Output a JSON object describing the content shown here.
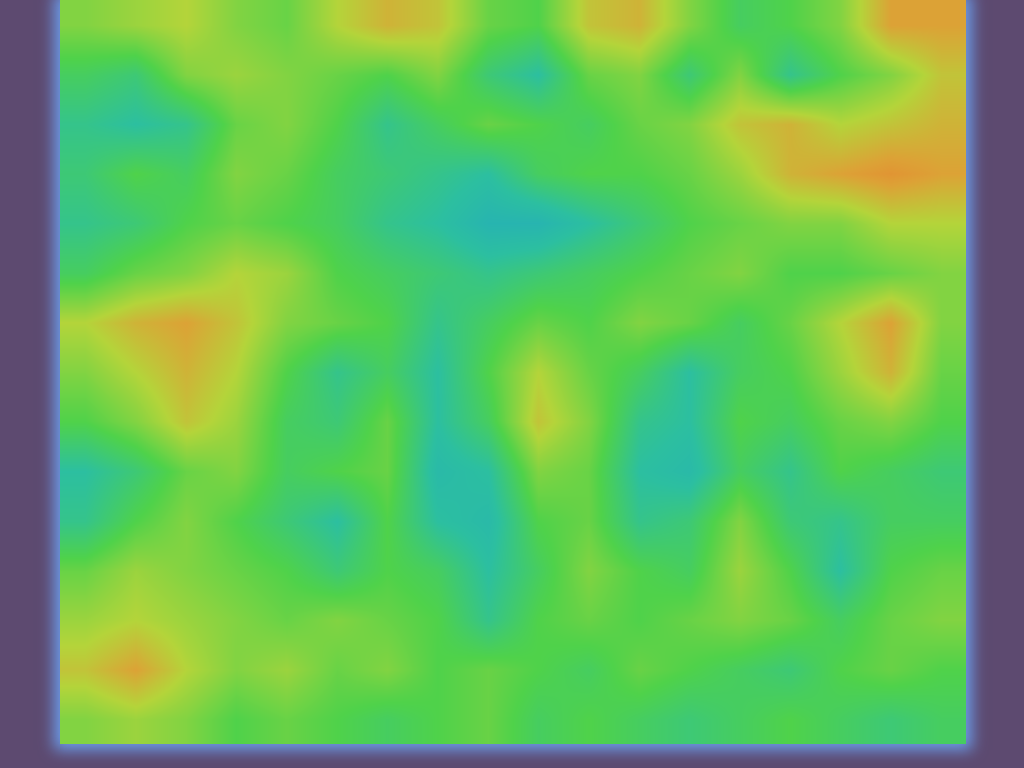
{
  "chart_data": {
    "type": "heatmap",
    "z": [
      [
        0.6,
        0.65,
        0.7,
        0.6,
        0.55,
        0.7,
        0.8,
        0.75,
        0.55,
        0.5,
        0.75,
        0.8,
        0.6,
        0.45,
        0.5,
        0.6,
        0.85,
        0.85
      ],
      [
        0.45,
        0.4,
        0.6,
        0.65,
        0.6,
        0.55,
        0.5,
        0.6,
        0.4,
        0.3,
        0.55,
        0.6,
        0.4,
        0.6,
        0.35,
        0.5,
        0.6,
        0.75
      ],
      [
        0.35,
        0.3,
        0.35,
        0.55,
        0.6,
        0.5,
        0.35,
        0.45,
        0.55,
        0.5,
        0.45,
        0.55,
        0.6,
        0.75,
        0.8,
        0.7,
        0.75,
        0.8
      ],
      [
        0.4,
        0.5,
        0.45,
        0.6,
        0.55,
        0.45,
        0.4,
        0.35,
        0.3,
        0.45,
        0.5,
        0.5,
        0.55,
        0.65,
        0.8,
        0.85,
        0.9,
        0.85
      ],
      [
        0.35,
        0.4,
        0.5,
        0.55,
        0.5,
        0.45,
        0.35,
        0.3,
        0.2,
        0.2,
        0.3,
        0.4,
        0.5,
        0.55,
        0.6,
        0.6,
        0.7,
        0.7
      ],
      [
        0.45,
        0.55,
        0.6,
        0.7,
        0.65,
        0.5,
        0.45,
        0.4,
        0.35,
        0.4,
        0.45,
        0.5,
        0.55,
        0.6,
        0.5,
        0.5,
        0.55,
        0.6
      ],
      [
        0.7,
        0.8,
        0.85,
        0.75,
        0.6,
        0.55,
        0.5,
        0.35,
        0.45,
        0.55,
        0.5,
        0.6,
        0.55,
        0.45,
        0.55,
        0.7,
        0.85,
        0.6
      ],
      [
        0.6,
        0.7,
        0.8,
        0.7,
        0.5,
        0.35,
        0.45,
        0.3,
        0.5,
        0.7,
        0.55,
        0.45,
        0.3,
        0.45,
        0.5,
        0.65,
        0.8,
        0.55
      ],
      [
        0.5,
        0.6,
        0.75,
        0.65,
        0.45,
        0.4,
        0.55,
        0.3,
        0.45,
        0.75,
        0.6,
        0.35,
        0.3,
        0.5,
        0.45,
        0.55,
        0.6,
        0.5
      ],
      [
        0.3,
        0.4,
        0.55,
        0.6,
        0.45,
        0.5,
        0.55,
        0.25,
        0.3,
        0.6,
        0.55,
        0.3,
        0.25,
        0.45,
        0.35,
        0.5,
        0.45,
        0.4
      ],
      [
        0.35,
        0.5,
        0.6,
        0.5,
        0.4,
        0.3,
        0.5,
        0.3,
        0.25,
        0.5,
        0.55,
        0.35,
        0.4,
        0.6,
        0.4,
        0.35,
        0.45,
        0.45
      ],
      [
        0.55,
        0.65,
        0.6,
        0.55,
        0.5,
        0.4,
        0.5,
        0.45,
        0.3,
        0.45,
        0.6,
        0.5,
        0.45,
        0.65,
        0.5,
        0.3,
        0.5,
        0.55
      ],
      [
        0.65,
        0.7,
        0.65,
        0.6,
        0.55,
        0.6,
        0.55,
        0.5,
        0.35,
        0.5,
        0.55,
        0.5,
        0.55,
        0.6,
        0.55,
        0.45,
        0.55,
        0.6
      ],
      [
        0.75,
        0.85,
        0.7,
        0.6,
        0.65,
        0.55,
        0.6,
        0.5,
        0.55,
        0.5,
        0.45,
        0.55,
        0.5,
        0.45,
        0.4,
        0.5,
        0.55,
        0.5
      ],
      [
        0.6,
        0.65,
        0.6,
        0.5,
        0.55,
        0.5,
        0.45,
        0.5,
        0.55,
        0.45,
        0.5,
        0.45,
        0.4,
        0.45,
        0.5,
        0.45,
        0.4,
        0.45
      ]
    ],
    "zlim": [
      0,
      1
    ],
    "xlim": [
      -0.5,
      17.5
    ],
    "ylim": [
      14.5,
      -0.5
    ],
    "grid": false,
    "tick_labels": false
  }
}
